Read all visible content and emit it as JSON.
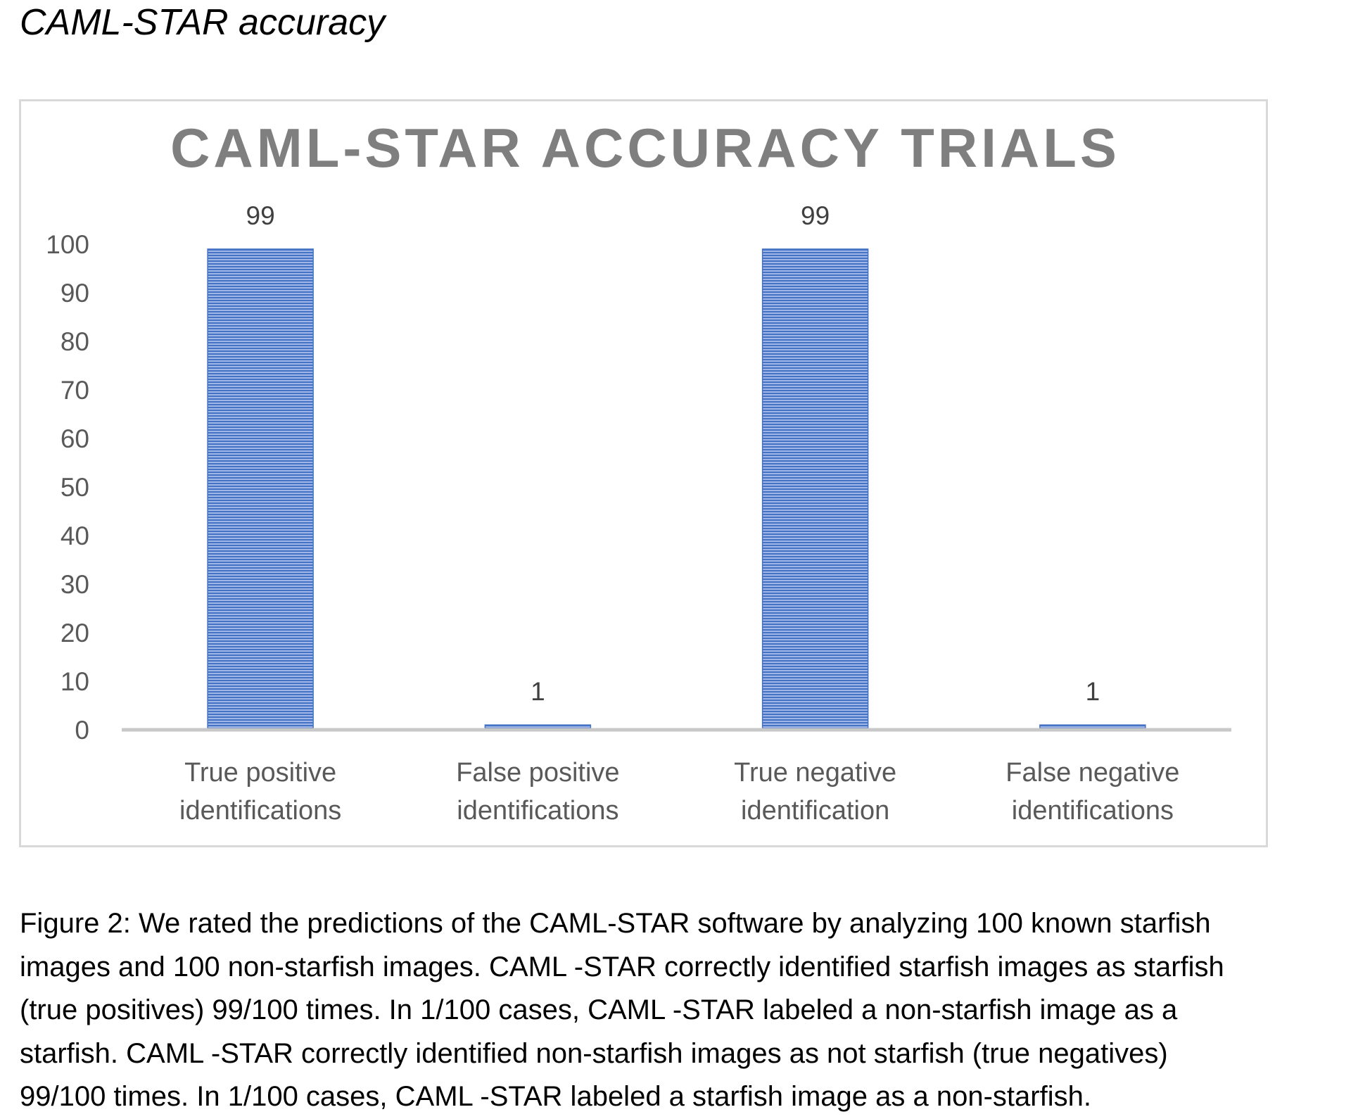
{
  "heading": "CAML-STAR accuracy",
  "chart_data": {
    "type": "bar",
    "title": "CAML-STAR ACCURACY TRIALS",
    "categories": [
      [
        "True positive",
        "identifications"
      ],
      [
        "False positive",
        "identifications"
      ],
      [
        "True negative",
        "identification"
      ],
      [
        "False negative",
        "identifications"
      ]
    ],
    "values": [
      99,
      1,
      99,
      1
    ],
    "data_labels": [
      "99",
      "1",
      "99",
      "1"
    ],
    "yticks": [
      "0",
      "10",
      "20",
      "30",
      "40",
      "50",
      "60",
      "70",
      "80",
      "90",
      "100"
    ],
    "ylim": [
      0,
      100
    ],
    "xlabel": "",
    "ylabel": "",
    "grid": false,
    "legend": "none",
    "bar_color": "#4472c4",
    "bar_stripe_color": "#9fb6e6"
  },
  "caption_lines": [
    "Figure 2: We rated the predictions of the CAML-STAR software by analyzing 100 known starfish",
    "images and 100 non-starfish images. CAML -STAR correctly identified starfish images as starfish",
    "(true positives) 99/100 times. In 1/100 cases, CAML -STAR labeled a non-starfish image as a",
    "starfish. CAML -STAR correctly identified non-starfish images as not starfish (true negatives)",
    "99/100 times. In 1/100 cases, CAML -STAR labeled a starfish image as a non-starfish."
  ]
}
